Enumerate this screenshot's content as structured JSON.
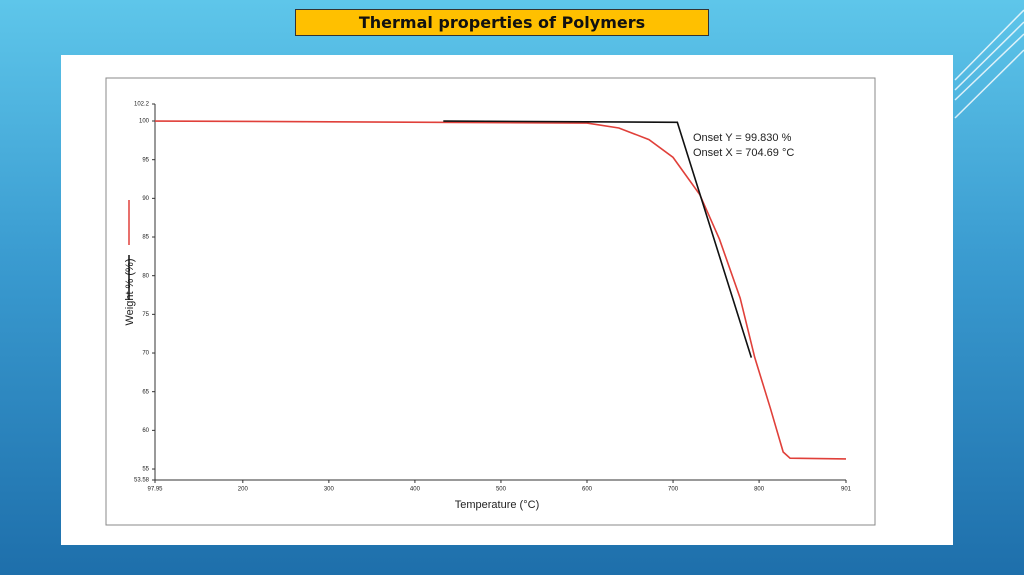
{
  "title": "Thermal properties of Polymers",
  "chart_data": {
    "type": "line",
    "x_label": "Temperature (°C)",
    "y_label": "Weight % (%)",
    "annotations": [
      "Onset Y = 99.830 %",
      "Onset X = 704.69 °C"
    ],
    "xlim": [
      97.95,
      901
    ],
    "xticks": [
      97.95,
      200,
      300,
      400,
      500,
      600,
      700,
      800,
      901
    ],
    "ylim": [
      53.58,
      102.2
    ],
    "yticks": [
      53.58,
      55,
      60,
      65,
      70,
      75,
      80,
      85,
      90,
      95,
      100,
      102.2
    ],
    "series": [
      {
        "color": "#e0403a",
        "x": [
          98,
          600,
          637,
          672,
          700,
          731,
          754,
          778,
          795,
          813,
          828,
          836,
          901
        ],
        "values": [
          100,
          99.74,
          99.1,
          97.6,
          95.3,
          90.5,
          84.7,
          77.1,
          69.4,
          62.9,
          57.2,
          56.4,
          56.3
        ]
      },
      {
        "color": "#111111",
        "x": [
          433,
          705,
          791
        ],
        "values": [
          100,
          99.83,
          69.4
        ]
      }
    ]
  }
}
